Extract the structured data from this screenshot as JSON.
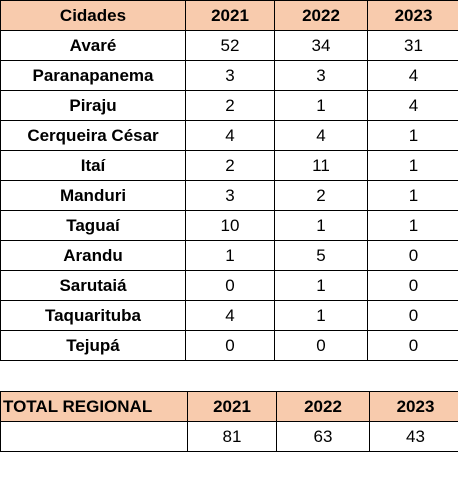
{
  "main_table": {
    "headers": [
      "Cidades",
      "2021",
      "2022",
      "2023"
    ],
    "rows": [
      [
        "Avaré",
        "52",
        "34",
        "31"
      ],
      [
        "Paranapanema",
        "3",
        "3",
        "4"
      ],
      [
        "Piraju",
        "2",
        "1",
        "4"
      ],
      [
        "Cerqueira César",
        "4",
        "4",
        "1"
      ],
      [
        "Itaí",
        "2",
        "11",
        "1"
      ],
      [
        "Manduri",
        "3",
        "2",
        "1"
      ],
      [
        "Taguaí",
        "10",
        "1",
        "1"
      ],
      [
        "Arandu",
        "1",
        "5",
        "0"
      ],
      [
        "Sarutaiá",
        "0",
        "1",
        "0"
      ],
      [
        "Taquarituba",
        "4",
        "1",
        "0"
      ],
      [
        "Tejupá",
        "0",
        "0",
        "0"
      ]
    ]
  },
  "total_table": {
    "headers": [
      "TOTAL REGIONAL",
      "2021",
      "2022",
      "2023"
    ],
    "row": [
      "",
      "81",
      "63",
      "43"
    ]
  },
  "colors": {
    "header_fill": "#f8cbad",
    "border": "#000000"
  }
}
